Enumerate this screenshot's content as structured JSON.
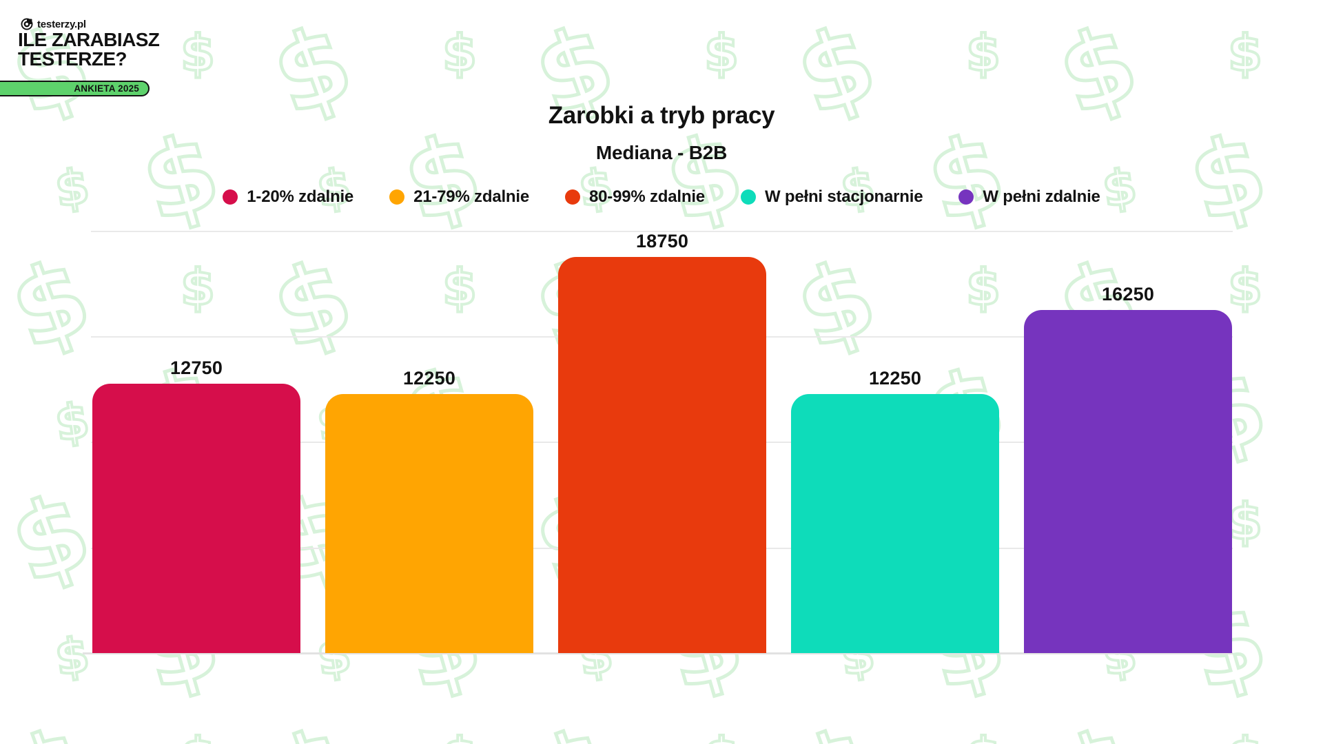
{
  "header": {
    "logo_text": "testerzy.pl",
    "headline_line1": "ILE ZARABIASZ",
    "headline_line2": "TESTERZE?",
    "badge_label": "ANKIETA 2025"
  },
  "chart_data": {
    "type": "bar",
    "title": "Zarobki a tryb pracy",
    "subtitle": "Mediana - B2B",
    "categories": [
      "1-20% zdalnie",
      "21-79% zdalnie",
      "80-99% zdalnie",
      "W pełni stacjonarnie",
      "W pełni zdalnie"
    ],
    "values": [
      12750,
      12250,
      18750,
      12250,
      16250
    ],
    "value_labels": [
      "12750",
      "12250",
      "18750",
      "12250",
      "16250"
    ],
    "bar_colors": [
      "#d60e4b",
      "#ffa502",
      "#e83a0d",
      "#0edcba",
      "#7634be"
    ],
    "ylim": [
      0,
      20000
    ],
    "gridline_values": [
      5000,
      10000,
      15000,
      20000
    ],
    "grid": true,
    "legend_position": "top-center",
    "xlabel": "",
    "ylabel": ""
  },
  "theme": {
    "badge_green": "#5ed26c",
    "pattern_green": "#d7f2da",
    "gridline_gray": "#e9e9e9",
    "text_black": "#121212"
  }
}
